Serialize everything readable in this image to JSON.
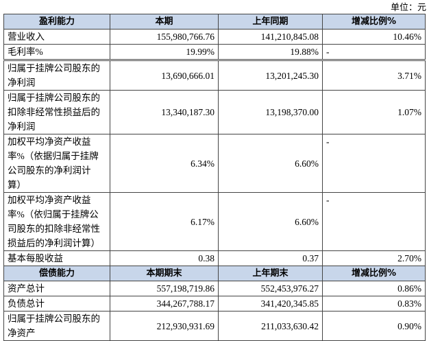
{
  "unit": "单位：元",
  "sections": [
    {
      "header": [
        "盈利能力",
        "本期",
        "上年同期",
        "增减比例%"
      ],
      "rows": [
        {
          "label": [
            "营业收入"
          ],
          "values": [
            "155,980,766.76",
            "141,210,845.08",
            "10.46%"
          ]
        },
        {
          "label": [
            "毛利率%"
          ],
          "values": [
            "19.99%",
            "19.88%",
            "-"
          ]
        },
        {
          "label": [
            "归属于挂牌公司股东的",
            "净利润"
          ],
          "values": [
            "13,690,666.01",
            "13,201,245.30",
            "3.71%"
          ]
        },
        {
          "label": [
            "归属于挂牌公司股东的",
            "扣除非经常性损益后的",
            "净利润"
          ],
          "values": [
            "13,340,187.30",
            "13,198,370.00",
            "1.07%"
          ]
        },
        {
          "label": [
            "加权平均净资产收益",
            "率%（依据归属于挂牌",
            "公司股东的净利润计",
            "算）"
          ],
          "values": [
            "6.34%",
            "6.60%",
            "-"
          ]
        },
        {
          "label": [
            "加权平均净资产收益",
            "率%（依归属于挂牌公",
            "司股东的扣除非经常性",
            "损益后的净利润计算）"
          ],
          "values": [
            "6.17%",
            "6.60%",
            "-"
          ]
        },
        {
          "label": [
            "基本每股收益"
          ],
          "values": [
            "0.38",
            "0.37",
            "2.70%"
          ]
        }
      ]
    },
    {
      "header": [
        "偿债能力",
        "本期期末",
        "上年期末",
        "增减比例%"
      ],
      "rows": [
        {
          "label": [
            "资产总计"
          ],
          "values": [
            "557,198,719.86",
            "552,453,976.27",
            "0.86%"
          ]
        },
        {
          "label": [
            "负债总计"
          ],
          "values": [
            "344,267,788.17",
            "341,420,345.85",
            "0.83%"
          ]
        },
        {
          "label": [
            "归属于挂牌公司股东的",
            "净资产"
          ],
          "values": [
            "212,930,931.69",
            "211,033,630.42",
            "0.90%"
          ]
        }
      ]
    }
  ]
}
